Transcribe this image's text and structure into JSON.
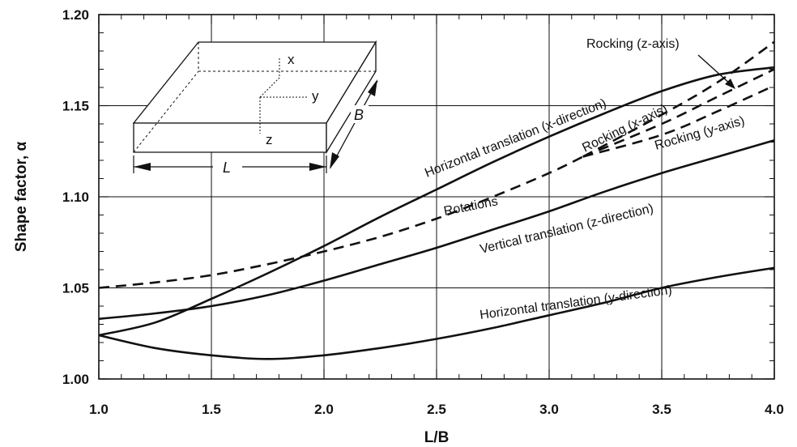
{
  "chart_data": {
    "type": "line",
    "title": "",
    "xlabel": "L/B",
    "ylabel": "Shape factor, α",
    "xlim": [
      1.0,
      4.0
    ],
    "ylim": [
      1.0,
      1.2
    ],
    "x_ticks": [
      "1.0",
      "1.5",
      "2.0",
      "2.5",
      "3.0",
      "3.5",
      "4.0"
    ],
    "y_ticks": [
      "1.00",
      "1.05",
      "1.10",
      "1.15",
      "1.20"
    ],
    "grid": true,
    "series": [
      {
        "name": "Horizontal translation (x-direction)",
        "style": "solid",
        "x": [
          1.0,
          1.25,
          1.5,
          1.75,
          2.0,
          2.25,
          2.5,
          2.75,
          3.0,
          3.25,
          3.5,
          3.75,
          4.0
        ],
        "y": [
          1.024,
          1.031,
          1.044,
          1.058,
          1.073,
          1.089,
          1.104,
          1.119,
          1.133,
          1.146,
          1.158,
          1.167,
          1.171
        ]
      },
      {
        "name": "Rotations",
        "style": "dashed",
        "x": [
          1.0,
          1.25,
          1.5,
          1.75,
          2.0,
          2.25,
          2.5,
          2.75,
          3.0,
          3.15
        ],
        "y": [
          1.05,
          1.053,
          1.057,
          1.063,
          1.07,
          1.078,
          1.088,
          1.1,
          1.113,
          1.122
        ]
      },
      {
        "name": "Rocking (z-axis)",
        "style": "dashed",
        "x": [
          3.15,
          3.5,
          3.75,
          4.0
        ],
        "y": [
          1.122,
          1.145,
          1.163,
          1.185
        ]
      },
      {
        "name": "Rocking (x-axis)",
        "style": "dashed",
        "x": [
          3.15,
          3.5,
          3.75,
          4.0
        ],
        "y": [
          1.122,
          1.14,
          1.155,
          1.17
        ]
      },
      {
        "name": "Rocking (y-axis)",
        "style": "dashed",
        "x": [
          3.15,
          3.5,
          3.75,
          4.0
        ],
        "y": [
          1.122,
          1.134,
          1.147,
          1.161
        ]
      },
      {
        "name": "Vertical translation (z-direction)",
        "style": "solid",
        "x": [
          1.0,
          1.25,
          1.5,
          1.75,
          2.0,
          2.25,
          2.5,
          2.75,
          3.0,
          3.25,
          3.5,
          3.75,
          4.0
        ],
        "y": [
          1.033,
          1.036,
          1.04,
          1.046,
          1.054,
          1.063,
          1.072,
          1.082,
          1.092,
          1.103,
          1.113,
          1.122,
          1.131
        ]
      },
      {
        "name": "Horizontal translation (y-direction)",
        "style": "solid",
        "x": [
          1.0,
          1.25,
          1.5,
          1.75,
          2.0,
          2.25,
          2.5,
          2.75,
          3.0,
          3.25,
          3.5,
          3.75,
          4.0
        ],
        "y": [
          1.024,
          1.017,
          1.013,
          1.011,
          1.013,
          1.017,
          1.022,
          1.028,
          1.035,
          1.042,
          1.05,
          1.056,
          1.061
        ]
      }
    ],
    "annotations": [
      "Horizontal translation (x-direction)",
      "Rotations",
      "Vertical translation (z-direction)",
      "Horizontal translation (y-direction)",
      "Rocking (z-axis)",
      "Rocking (x-axis)",
      "Rocking (y-axis)"
    ],
    "inset": {
      "axis_labels": [
        "x",
        "y",
        "z"
      ],
      "dimension_labels": [
        "L",
        "B"
      ]
    }
  }
}
